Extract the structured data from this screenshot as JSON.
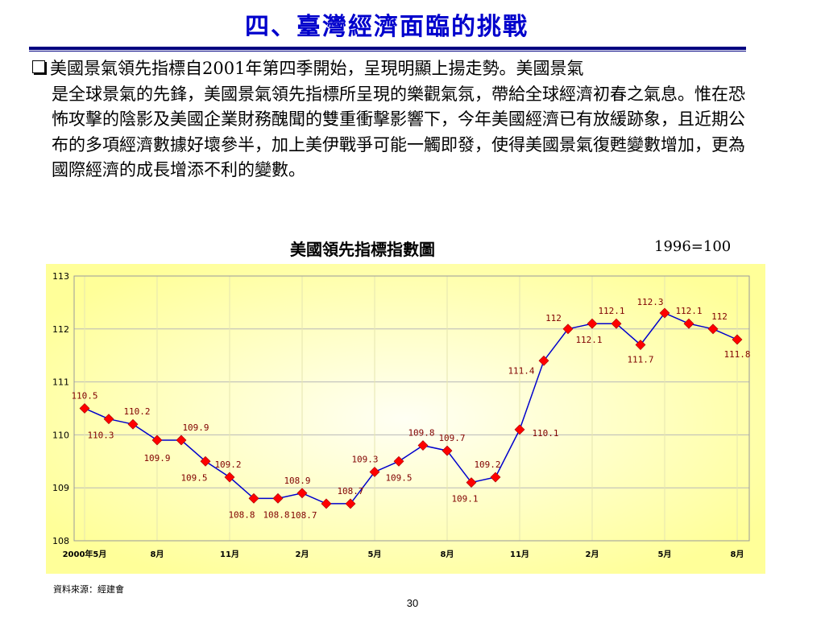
{
  "slide": {
    "title": "四、臺灣經濟面臨的挑戰",
    "paragraph_first": "美國景氣領先指標自2001年第四季開始，呈現明顯上揚走勢。美國景氣",
    "paragraph_rest": "是全球景氣的先鋒，美國景氣領先指標所呈現的樂觀氣氛，帶給全球經濟初春之氣息。惟在恐怖攻擊的陰影及美國企業財務醜聞的雙重衝擊影響下，今年美國經濟已有放緩跡象，且近期公布的多項經濟數據好壞參半，加上美伊戰爭可能一觸即發，使得美國景氣復甦變數增加，更為國際經濟的成長增添不利的變數。",
    "source": "資料來源：經建會",
    "page_number": "30"
  },
  "chart_data": {
    "type": "line",
    "title": "美國領先指標指數圖",
    "note": "1996=100",
    "xlabel": "",
    "ylabel": "",
    "ylim": [
      108,
      113
    ],
    "yticks": [
      "113",
      "112",
      "111",
      "110",
      "109",
      "108"
    ],
    "x_tick_labels": [
      "2000年5月",
      "8月",
      "11月",
      "2月",
      "5月",
      "8月",
      "11月",
      "2月",
      "5月",
      "8月"
    ],
    "grid": true,
    "series_color": "#0000cc",
    "marker_color": "#ff0000",
    "label_color": "#800000",
    "series": [
      {
        "values": [
          110.5,
          110.3,
          110.2,
          109.9,
          109.9,
          109.5,
          109.2,
          108.8,
          108.8,
          108.9,
          108.7,
          108.7,
          109.3,
          109.5,
          109.8,
          109.7,
          109.1,
          109.2,
          110.1,
          111.4,
          112,
          112.1,
          112.1,
          111.7,
          112.3,
          112.1,
          112,
          111.8
        ],
        "labels": [
          "110.5",
          "110.3",
          "110.2",
          "109.9",
          "109.9",
          "109.5",
          "109.2",
          "108.8",
          "108.8",
          "108.9",
          "108.7",
          "108.7",
          "109.3",
          "109.5",
          "109.8",
          "109.7",
          "109.1",
          "109.2",
          "110.1",
          "111.4",
          "112",
          "112.1",
          "112.1",
          "111.7",
          "112.3",
          "112.1",
          "112",
          "111.8"
        ]
      }
    ]
  }
}
